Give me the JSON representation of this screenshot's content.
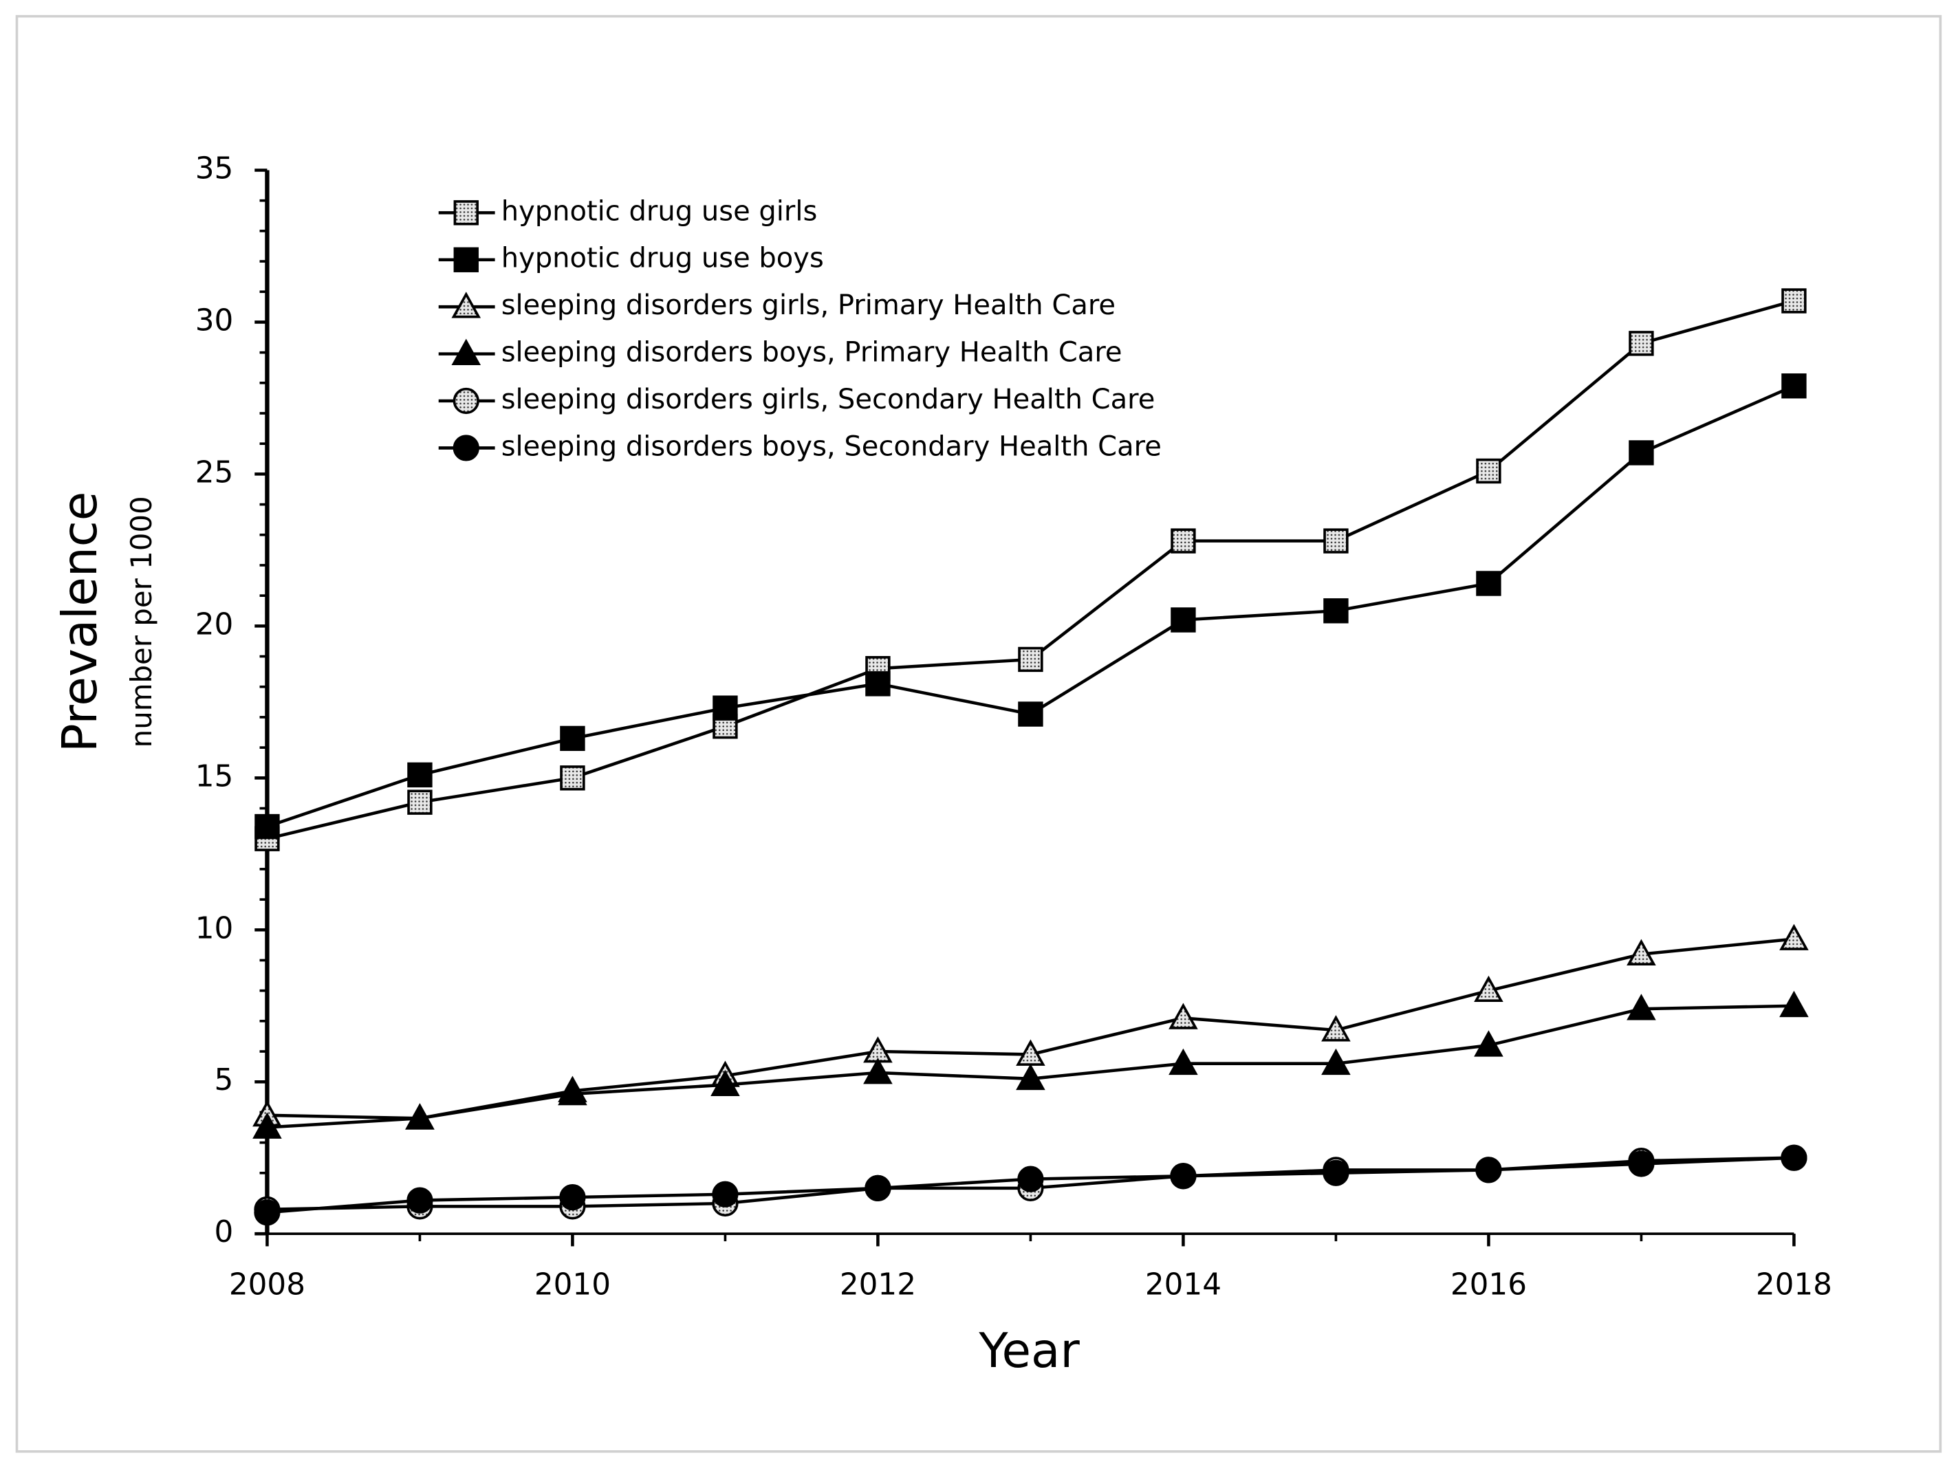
{
  "chart_data": {
    "type": "line",
    "x_label": "Year",
    "y_label": "Prevalence",
    "y_sublabel": "number per 1000",
    "x": [
      2008,
      2009,
      2010,
      2011,
      2012,
      2013,
      2014,
      2015,
      2016,
      2017,
      2018
    ],
    "xlim": [
      2008,
      2018
    ],
    "xticks": [
      2008,
      2010,
      2012,
      2014,
      2016,
      2018
    ],
    "ylim": [
      0,
      35
    ],
    "yticks": [
      0,
      5,
      10,
      15,
      20,
      25,
      30,
      35
    ],
    "grid": false,
    "legend": "top-left",
    "series": [
      {
        "name": "hypnotic drug use girls",
        "color": "#000000",
        "marker": "square",
        "marker_fill": "dotted",
        "values": [
          13.0,
          14.2,
          15.0,
          16.7,
          18.6,
          18.9,
          22.8,
          22.8,
          25.1,
          29.3,
          30.7
        ]
      },
      {
        "name": "hypnotic drug use boys",
        "color": "#000000",
        "marker": "square",
        "marker_fill": "solid",
        "values": [
          13.4,
          15.1,
          16.3,
          17.3,
          18.1,
          17.1,
          20.2,
          20.5,
          21.4,
          25.7,
          27.9
        ]
      },
      {
        "name": "sleeping disorders girls, Primary Health Care",
        "color": "#000000",
        "marker": "triangle",
        "marker_fill": "dotted",
        "values": [
          3.9,
          3.8,
          4.7,
          5.2,
          6.0,
          5.9,
          7.1,
          6.7,
          8.0,
          9.2,
          9.7
        ]
      },
      {
        "name": "sleeping disorders boys, Primary Health Care",
        "color": "#000000",
        "marker": "triangle",
        "marker_fill": "solid",
        "values": [
          3.5,
          3.8,
          4.6,
          4.9,
          5.3,
          5.1,
          5.6,
          5.6,
          6.2,
          7.4,
          7.5
        ]
      },
      {
        "name": "sleeping disorders girls, Secondary Health Care",
        "color": "#000000",
        "marker": "circle",
        "marker_fill": "dotted",
        "values": [
          0.8,
          0.9,
          0.9,
          1.0,
          1.5,
          1.5,
          1.9,
          2.1,
          2.1,
          2.4,
          2.5
        ]
      },
      {
        "name": "sleeping disorders boys, Secondary Health Care",
        "color": "#000000",
        "marker": "circle",
        "marker_fill": "solid",
        "values": [
          0.7,
          1.1,
          1.2,
          1.3,
          1.5,
          1.8,
          1.9,
          2.0,
          2.1,
          2.3,
          2.5
        ]
      }
    ]
  }
}
